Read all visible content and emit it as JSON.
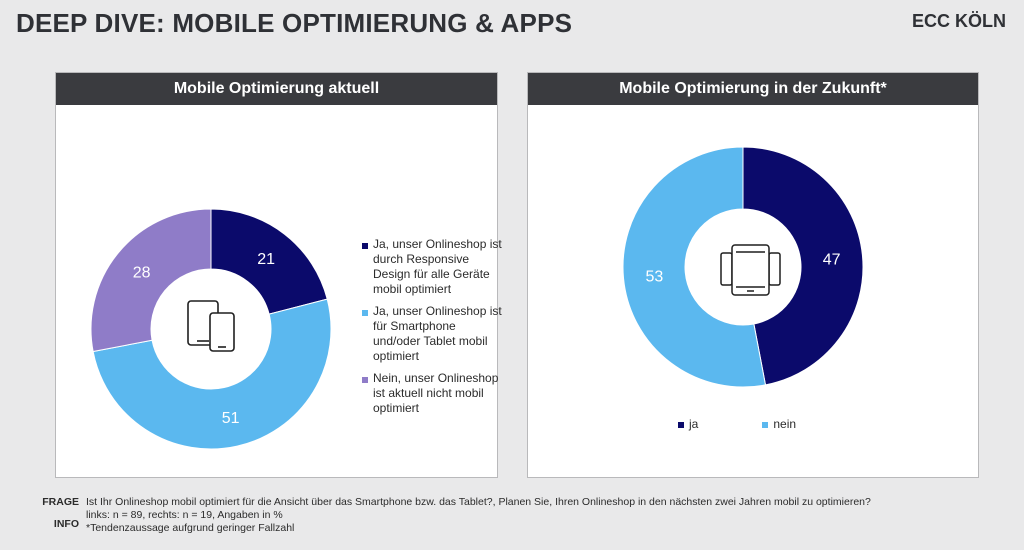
{
  "header": {
    "title": "DEEP DIVE: MOBILE OPTIMIERUNG & APPS",
    "brand": "ECC KÖLN"
  },
  "colors": {
    "dark_navy": "#0b0a6b",
    "light_blue": "#5bb8ef",
    "purple": "#8f7cc8",
    "panel_header": "#3a3b3f"
  },
  "icons": {
    "left_center": "tablet-and-phone-icon",
    "right_center": "phones-icon"
  },
  "chart_data": [
    {
      "type": "pie",
      "variant": "donut",
      "title": "Mobile Optimierung aktuell",
      "categories": [
        "Ja, unser Onlineshop ist durch Responsive Design für alle Geräte mobil optimiert",
        "Ja, unser Onlineshop ist für Smartphone und/oder Tablet mobil optimiert",
        "Nein, unser Onlineshop ist aktuell nicht mobil optimiert"
      ],
      "values": [
        21,
        51,
        28
      ],
      "colors": [
        "#0b0a6b",
        "#5bb8ef",
        "#8f7cc8"
      ],
      "legend_position": "right"
    },
    {
      "type": "pie",
      "variant": "donut",
      "title": "Mobile Optimierung in der Zukunft*",
      "categories": [
        "ja",
        "nein"
      ],
      "values": [
        47,
        53
      ],
      "colors": [
        "#0b0a6b",
        "#5bb8ef"
      ],
      "legend_position": "bottom"
    }
  ],
  "footer": {
    "frage_label": "FRAGE",
    "frage_text": "Ist Ihr Onlineshop mobil optimiert für die Ansicht über das Smartphone bzw. das Tablet?, Planen Sie, Ihren Onlineshop in den nächsten zwei Jahren mobil zu optimieren?",
    "info_label": "INFO",
    "info_line1": "links: n = 89, rechts: n = 19, Angaben in %",
    "info_line2": "*Tendenzaussage aufgrund geringer Fallzahl"
  }
}
